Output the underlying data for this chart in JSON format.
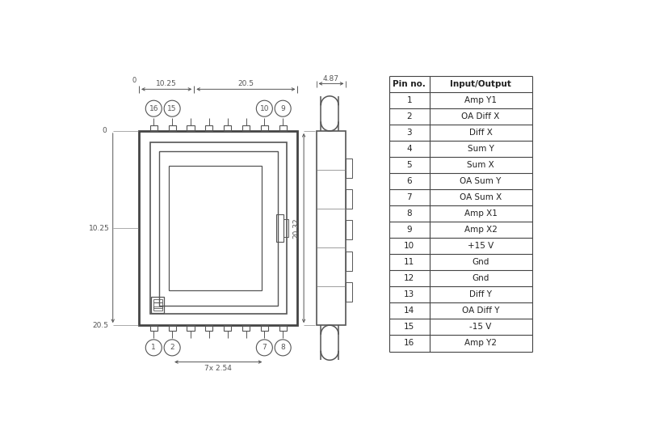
{
  "bg_color": "#ffffff",
  "line_color": "#555555",
  "table_pin_nos": [
    "Pin no.",
    "1",
    "2",
    "3",
    "4",
    "5",
    "6",
    "7",
    "8",
    "9",
    "10",
    "11",
    "12",
    "13",
    "14",
    "15",
    "16"
  ],
  "table_io": [
    "Input/Output",
    "Amp Y1",
    "OA Diff X",
    "Diff X",
    "Sum Y",
    "Sum X",
    "OA Sum Y",
    "OA Sum X",
    "Amp X1",
    "Amp X2",
    "+15 V",
    "Gnd",
    "Gnd",
    "Diff Y",
    "OA Diff Y",
    "-15 V",
    "Amp Y2"
  ],
  "dim_10_25": "10.25",
  "dim_20_5_top": "20.5",
  "dim_left_10_25": "10.25",
  "dim_left_20_5": "20.5",
  "dim_side_w": "4.87",
  "dim_side_h": "20.32",
  "label_spacing": "7x 2.54",
  "pin_circles_top": [
    "16",
    "15",
    "10",
    "9"
  ],
  "pin_circles_bot": [
    "1",
    "2",
    "7",
    "8"
  ]
}
